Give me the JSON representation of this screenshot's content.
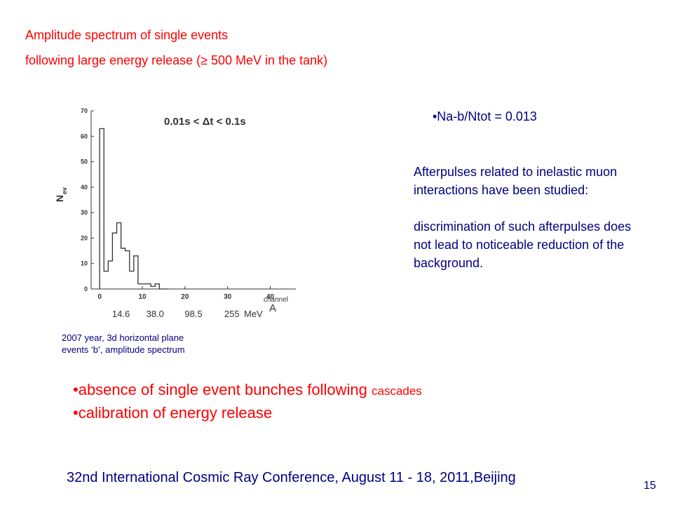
{
  "title": {
    "line1": "Amplitude spectrum of single events",
    "line2": "following large energy release  (≥ 500 MeV in the tank)"
  },
  "ratio": "•Na-b/Ntot = 0.013",
  "description": {
    "p1": "Afterpulses related to inelastic muon interactions have been studied:",
    "p2": "discrimination of such afterpulses does not lead to noticeable reduction of the background."
  },
  "caption": {
    "line1": "2007 year, 3d horizontal plane",
    "line2": "events ‘b’, amplitude spectrum"
  },
  "bullets": [
    {
      "text": "•absence of single event bunches following ",
      "small": "cascades"
    },
    {
      "text": "•calibration of energy release",
      "small": ""
    }
  ],
  "footer": "32nd International Cosmic Ray Conference, August 11 - 18, 2011,Beijing",
  "page_number": "15",
  "colors": {
    "red": "#ff0000",
    "navy": "#000080",
    "chart": "#333333"
  },
  "chart_data": {
    "type": "histogram",
    "annotation": "0.01s < Δt < 0.1s",
    "ylabel": "N",
    "ylabel_sub": "ev",
    "xlabel": "A",
    "xlabel_channel": "channel",
    "xlabel_mev": "MeV",
    "ylim": [
      0,
      70
    ],
    "xlim": [
      -2,
      46
    ],
    "y_ticks": [
      0,
      10,
      20,
      30,
      40,
      50,
      60,
      70
    ],
    "x_ticks": [
      0,
      10,
      20,
      30,
      40
    ],
    "mev_ticks": [
      {
        "channel": 5,
        "label": "14.6"
      },
      {
        "channel": 13,
        "label": "38.0"
      },
      {
        "channel": 22,
        "label": "98.5"
      },
      {
        "channel": 31,
        "label": "255"
      }
    ],
    "bin_edges": [
      0,
      1,
      2,
      3,
      4,
      5,
      6,
      7,
      8,
      9,
      10,
      11,
      12,
      13,
      14,
      15,
      16
    ],
    "counts": [
      63,
      7,
      11,
      22,
      26,
      16,
      15,
      7,
      13,
      2,
      2,
      2,
      1,
      2,
      0,
      0
    ]
  }
}
